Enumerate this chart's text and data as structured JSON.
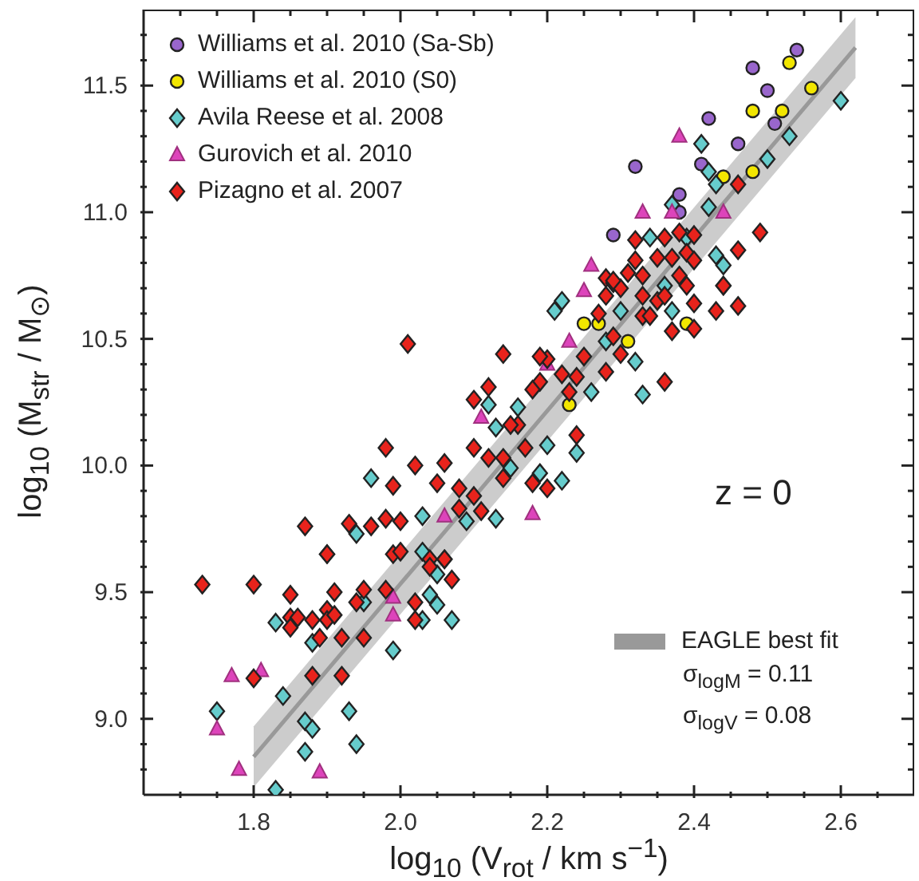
{
  "chart_data": {
    "type": "scatter",
    "xlabel": "log$_{10}$ (V$_{rot}$ / km s$^{−1}$)",
    "ylabel": "log$_{10}$ (M$_{str}$ / M$_{⊙}$)",
    "xlim": [
      1.65,
      2.7
    ],
    "ylim": [
      8.7,
      11.8
    ],
    "xticks": [
      {
        "value": 1.7,
        "label": null
      },
      {
        "value": 1.75,
        "label": null
      },
      1.8,
      {
        "value": 1.85,
        "label": null
      },
      {
        "value": 1.9,
        "label": null
      },
      {
        "value": 1.95,
        "label": null
      },
      {
        "value": 2,
        "label": "2.0"
      },
      {
        "value": 2.05,
        "label": null
      },
      {
        "value": 2.1,
        "label": null
      },
      {
        "value": 2.15,
        "label": null
      },
      2.2,
      {
        "value": 2.25,
        "label": null
      },
      {
        "value": 2.3,
        "label": null
      },
      {
        "value": 2.35,
        "label": null
      },
      2.4,
      {
        "value": 2.45,
        "label": null
      },
      {
        "value": 2.5,
        "label": null
      },
      {
        "value": 2.55,
        "label": null
      },
      2.6,
      {
        "value": 2.65,
        "label": null
      }
    ],
    "yticks": [
      {
        "value": 8.8,
        "label": null
      },
      {
        "value": 8.9,
        "label": null
      },
      {
        "value": 9,
        "label": "9.0"
      },
      {
        "value": 9.1,
        "label": null
      },
      {
        "value": 9.2,
        "label": null
      },
      {
        "value": 9.3,
        "label": null
      },
      {
        "value": 9.4,
        "label": null
      },
      9.5,
      {
        "value": 9.6,
        "label": null
      },
      {
        "value": 9.7,
        "label": null
      },
      {
        "value": 9.8,
        "label": null
      },
      {
        "value": 9.9,
        "label": null
      },
      {
        "value": 10,
        "label": "10.0"
      },
      {
        "value": 10.1,
        "label": null
      },
      {
        "value": 10.2,
        "label": null
      },
      {
        "value": 10.3,
        "label": null
      },
      {
        "value": 10.4,
        "label": null
      },
      10.5,
      {
        "value": 10.6,
        "label": null
      },
      {
        "value": 10.7,
        "label": null
      },
      {
        "value": 10.8,
        "label": null
      },
      {
        "value": 10.9,
        "label": null
      },
      {
        "value": 11,
        "label": "11.0"
      },
      {
        "value": 11.1,
        "label": null
      },
      {
        "value": 11.2,
        "label": null
      },
      {
        "value": 11.3,
        "label": null
      },
      {
        "value": 11.4,
        "label": null
      },
      11.5,
      {
        "value": 11.6,
        "label": null
      },
      {
        "value": 11.7,
        "label": null
      }
    ],
    "legend": "top left",
    "annotations": [
      "z = 0",
      "σ$_{logM}$ = 0.11",
      "σ$_{logV}$ = 0.08"
    ],
    "series": [
      {
        "name": "EAGLE best fit",
        "type": "line",
        "color": "#999999",
        "x": [
          1.8,
          2.62
        ],
        "values": [
          8.85,
          11.65
        ],
        "lower": [
          8.73,
          11.53
        ],
        "upper": [
          8.97,
          11.77
        ]
      },
      {
        "name": "Williams et al. 2010 (Sa-Sb)",
        "marker": "circle",
        "color": "#9966cc",
        "x": [
          2.54,
          2.48,
          2.5,
          2.42,
          2.51,
          2.46,
          2.41,
          2.32,
          2.38,
          2.38,
          2.29
        ],
        "values": [
          11.64,
          11.57,
          11.48,
          11.37,
          11.35,
          11.27,
          11.19,
          11.18,
          11.07,
          11.0,
          10.91
        ]
      },
      {
        "name": "Williams et al. 2010 (S0)",
        "marker": "circle",
        "color": "#f2e600",
        "x": [
          2.53,
          2.56,
          2.48,
          2.52,
          2.48,
          2.44,
          2.25,
          2.27,
          2.31,
          2.23,
          2.39
        ],
        "values": [
          11.59,
          11.49,
          11.4,
          11.4,
          11.16,
          11.14,
          10.56,
          10.56,
          10.49,
          10.24,
          10.56
        ]
      },
      {
        "name": "Avila Reese et al. 2008",
        "marker": "diamond",
        "color": "#66cccc",
        "x": [
          2.6,
          2.53,
          2.5,
          2.41,
          2.43,
          2.42,
          2.37,
          2.42,
          2.34,
          2.39,
          2.43,
          2.44,
          2.21,
          2.22,
          2.36,
          2.37,
          2.3,
          2.28,
          2.26,
          2.32,
          2.33,
          2.16,
          2.12,
          2.13,
          2.2,
          2.24,
          1.96,
          1.94,
          2.03,
          2.09,
          2.13,
          2.15,
          2.19,
          2.22,
          2.03,
          2.05,
          2.04,
          2.05,
          2.07,
          2.03,
          1.95,
          1.99,
          1.88,
          1.83,
          1.84,
          1.75,
          1.93,
          1.87,
          1.88,
          1.87,
          1.94,
          1.83
        ],
        "values": [
          11.44,
          11.3,
          11.21,
          11.27,
          11.11,
          11.16,
          11.03,
          11.02,
          10.9,
          10.9,
          10.83,
          10.79,
          10.61,
          10.65,
          10.71,
          10.61,
          10.61,
          10.49,
          10.29,
          10.41,
          10.28,
          10.23,
          10.24,
          10.15,
          10.08,
          10.05,
          9.95,
          9.73,
          9.8,
          9.78,
          9.79,
          9.99,
          9.97,
          9.94,
          9.66,
          9.57,
          9.49,
          9.45,
          9.39,
          9.39,
          9.46,
          9.27,
          9.3,
          9.38,
          9.09,
          9.03,
          9.03,
          8.99,
          8.96,
          8.87,
          8.9,
          8.72
        ]
      },
      {
        "name": "Gurovich et al. 2010",
        "marker": "triangle",
        "color": "#dd44bb",
        "x": [
          2.38,
          2.33,
          2.37,
          2.44,
          2.26,
          2.25,
          2.23,
          2.2,
          2.11,
          2.06,
          2.18,
          1.99,
          1.99,
          1.77,
          1.81,
          1.75,
          1.78,
          1.89
        ],
        "values": [
          11.3,
          11.0,
          11.0,
          11.0,
          10.79,
          10.69,
          10.49,
          10.4,
          10.19,
          9.8,
          9.81,
          9.48,
          9.41,
          9.17,
          9.19,
          8.96,
          8.8,
          8.79
        ]
      },
      {
        "name": "Pizagno et al. 2007",
        "marker": "diamond",
        "color": "#e8231c",
        "x": [
          2.49,
          2.46,
          2.46,
          2.4,
          2.38,
          2.36,
          2.32,
          2.32,
          2.35,
          2.37,
          2.39,
          2.4,
          2.28,
          2.29,
          2.31,
          2.33,
          2.38,
          2.44,
          2.44,
          2.46,
          2.43,
          2.4,
          2.39,
          2.4,
          2.37,
          2.35,
          2.33,
          2.3,
          2.28,
          2.27,
          2.29,
          2.33,
          2.34,
          2.36,
          2.36,
          2.29,
          2.3,
          2.28,
          2.25,
          2.24,
          2.23,
          2.24,
          2.22,
          2.2,
          2.19,
          2.19,
          2.18,
          2.16,
          2.15,
          2.17,
          2.18,
          2.2,
          2.14,
          2.12,
          2.1,
          2.1,
          2.12,
          2.08,
          2.05,
          2.06,
          2.02,
          1.98,
          2.01,
          2.14,
          2.1,
          2.08,
          2.11,
          2.14,
          1.99,
          1.98,
          1.96,
          1.87,
          1.9,
          1.93,
          2.0,
          1.99,
          2.04,
          2.06,
          1.73,
          1.8,
          1.85,
          1.85,
          1.86,
          1.85,
          1.88,
          1.9,
          1.9,
          1.9,
          1.91,
          1.91,
          1.94,
          1.95,
          1.98,
          1.92,
          1.89,
          1.95,
          2.02,
          2.02,
          2.04,
          2.06,
          2.07,
          2.0,
          1.8,
          1.88,
          1.92
        ],
        "values": [
          10.92,
          11.11,
          10.85,
          10.91,
          10.92,
          10.9,
          10.89,
          10.81,
          10.82,
          10.82,
          10.84,
          10.81,
          10.74,
          10.72,
          10.76,
          10.75,
          10.75,
          10.71,
          10.71,
          10.63,
          10.61,
          10.64,
          10.71,
          10.54,
          10.53,
          10.65,
          10.67,
          10.7,
          10.67,
          10.6,
          10.73,
          10.59,
          10.59,
          10.67,
          10.33,
          10.51,
          10.44,
          10.37,
          10.43,
          10.35,
          10.29,
          10.12,
          10.36,
          10.42,
          10.43,
          10.33,
          10.3,
          10.16,
          10.16,
          10.07,
          9.93,
          9.91,
          10.44,
          10.31,
          10.26,
          10.07,
          10.03,
          9.91,
          9.93,
          10.01,
          10.0,
          10.07,
          10.48,
          10.03,
          9.88,
          9.83,
          9.82,
          9.95,
          9.92,
          9.79,
          9.76,
          9.76,
          9.65,
          9.77,
          9.78,
          9.65,
          9.63,
          9.63,
          9.53,
          9.53,
          9.49,
          9.4,
          9.4,
          9.36,
          9.39,
          9.65,
          9.43,
          9.39,
          9.41,
          9.5,
          9.46,
          9.51,
          9.51,
          9.32,
          9.32,
          9.32,
          9.39,
          9.46,
          9.6,
          9.63,
          9.55,
          9.66,
          9.16,
          9.17,
          9.17
        ]
      }
    ]
  }
}
